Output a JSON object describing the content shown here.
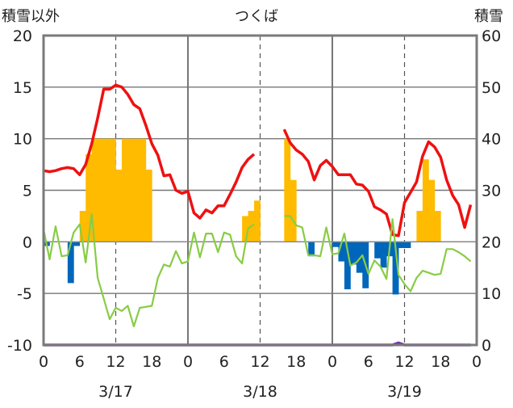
{
  "chart_data": {
    "type": "bar",
    "title": "つくば",
    "left_axis_label": "積雪以外",
    "right_axis_label": "積雪",
    "y_left": {
      "min": -10,
      "max": 20,
      "ticks": [
        "20",
        "15",
        "10",
        "5",
        "0",
        "-5",
        "-10"
      ]
    },
    "y_right": {
      "min": 0,
      "max": 60,
      "ticks": [
        "60",
        "50",
        "40",
        "30",
        "20",
        "10",
        "0"
      ]
    },
    "x_range": [
      0,
      72
    ],
    "x_ticks": [
      "0",
      "6",
      "12",
      "18",
      "0",
      "6",
      "12",
      "18",
      "0",
      "6",
      "12",
      "18",
      "0"
    ],
    "date_labels": [
      "3/17",
      "3/18",
      "3/19"
    ],
    "grid": {
      "major_hours": [
        24,
        48
      ],
      "minor_hours": [
        12,
        36,
        60
      ]
    },
    "colors": {
      "temperature": "#ee1111",
      "humidity_line": "#88cc44",
      "positive_bars": "#ffbb00",
      "negative_bars": "#0066bb",
      "snow_depth": "#7733aa"
    },
    "series": [
      {
        "kind": "line",
        "axis": "left",
        "color_key": "temperature",
        "points": [
          [
            0,
            6.9
          ],
          [
            1,
            6.8
          ],
          [
            2,
            6.9
          ],
          [
            3,
            7.1
          ],
          [
            4,
            7.2
          ],
          [
            5,
            7.1
          ],
          [
            6,
            6.5
          ],
          [
            7,
            7.5
          ],
          [
            8,
            9.5
          ],
          [
            9,
            12
          ],
          [
            10,
            14.8
          ],
          [
            11,
            14.8
          ],
          [
            12,
            15.2
          ],
          [
            13,
            15
          ],
          [
            14,
            14.3
          ],
          [
            15,
            13.3
          ],
          [
            16,
            12.9
          ],
          [
            17,
            11.3
          ],
          [
            18,
            9.5
          ],
          [
            19,
            8.4
          ],
          [
            20,
            6.4
          ],
          [
            21,
            6.5
          ],
          [
            22,
            5
          ],
          [
            23,
            4.7
          ],
          [
            24,
            4.9
          ],
          [
            25,
            2.8
          ],
          [
            26,
            2.3
          ],
          [
            27,
            3.1
          ],
          [
            28,
            2.8
          ],
          [
            29,
            3.5
          ],
          [
            30,
            3.5
          ],
          [
            31,
            4.6
          ],
          [
            32,
            5.8
          ],
          [
            33,
            7.2
          ],
          [
            34,
            8
          ],
          [
            35,
            8.5
          ],
          null,
          [
            40,
            10.9
          ],
          [
            41,
            9.6
          ],
          [
            42,
            8.9
          ],
          [
            43,
            8.5
          ],
          [
            44,
            7.8
          ],
          [
            45,
            6
          ],
          [
            46,
            7.4
          ],
          [
            47,
            7.9
          ],
          [
            48,
            7.3
          ],
          [
            49,
            6.5
          ],
          [
            50,
            6.5
          ],
          [
            51,
            6.5
          ],
          [
            52,
            5.6
          ],
          [
            53,
            5.5
          ],
          [
            54,
            4.9
          ],
          [
            55,
            3.4
          ],
          [
            56,
            3.1
          ],
          [
            57,
            2.7
          ],
          [
            58,
            0.7
          ],
          [
            59,
            0.6
          ],
          [
            60,
            3.8
          ],
          [
            61,
            4.8
          ],
          [
            62,
            5.8
          ],
          [
            63,
            8.3
          ],
          [
            64,
            9.7
          ],
          [
            65,
            9.2
          ],
          [
            66,
            8.2
          ],
          [
            67,
            6
          ],
          [
            68,
            4.5
          ],
          [
            69,
            3.6
          ],
          [
            70,
            1.4
          ],
          [
            71,
            3.6
          ]
        ]
      },
      {
        "kind": "line",
        "axis": "left",
        "color_key": "humidity_line",
        "points": [
          [
            0,
            1.2
          ],
          [
            1,
            -1.7
          ],
          [
            2,
            1.5
          ],
          [
            3,
            -1.4
          ],
          [
            4,
            -1.3
          ],
          [
            5,
            0.9
          ],
          [
            6,
            1.7
          ],
          [
            7,
            -2
          ],
          [
            8,
            2.7
          ],
          [
            9,
            -3.5
          ],
          [
            10,
            -5.5
          ],
          [
            11,
            -7.5
          ],
          [
            12,
            -6.4
          ],
          [
            13,
            -6.7
          ],
          [
            14,
            -6.2
          ],
          [
            15,
            -8.2
          ],
          [
            16,
            -6.4
          ],
          [
            17,
            -6.3
          ],
          [
            18,
            -6.2
          ],
          [
            19,
            -3.5
          ],
          [
            20,
            -2.2
          ],
          [
            21,
            -2.4
          ],
          [
            22,
            -0.9
          ],
          [
            23,
            -2.1
          ],
          [
            24,
            -1.9
          ],
          [
            25,
            0.9
          ],
          [
            26,
            -1.5
          ],
          [
            27,
            0.8
          ],
          [
            28,
            0.8
          ],
          [
            29,
            -1
          ],
          [
            30,
            0.9
          ],
          [
            31,
            0.7
          ],
          [
            32,
            -1.4
          ],
          [
            33,
            -2.1
          ],
          [
            34,
            1.3
          ],
          [
            35,
            1.7
          ],
          null,
          [
            40,
            2.5
          ],
          [
            41,
            2.5
          ],
          [
            42,
            1.6
          ],
          [
            43,
            1.4
          ],
          [
            44,
            -1.3
          ],
          [
            45,
            -1.3
          ],
          [
            46,
            -1.4
          ],
          [
            47,
            1.4
          ],
          [
            48,
            -1.2
          ],
          [
            49,
            -1.1
          ],
          [
            50,
            0.8
          ],
          [
            51,
            -2.3
          ],
          [
            52,
            -2
          ],
          [
            53,
            -1.3
          ],
          [
            54,
            -3.1
          ],
          [
            55,
            -1.8
          ],
          [
            56,
            -2.4
          ],
          [
            57,
            -3.6
          ],
          [
            58,
            2.2
          ],
          [
            59,
            -3.2
          ],
          [
            60,
            -4.1
          ],
          [
            61,
            -4.8
          ],
          [
            62,
            -3.5
          ],
          [
            63,
            -2.8
          ],
          [
            64,
            -3
          ],
          [
            65,
            -3.2
          ],
          [
            66,
            -3.1
          ],
          [
            67,
            -0.7
          ],
          [
            68,
            -0.7
          ],
          [
            69,
            -1
          ],
          [
            70,
            -1.4
          ],
          [
            71,
            -1.9
          ]
        ]
      },
      {
        "kind": "bars",
        "axis": "right",
        "color_key": "positive_bars",
        "data": [
          [
            6,
            26
          ],
          [
            7,
            37
          ],
          [
            8,
            40
          ],
          [
            9,
            40
          ],
          [
            10,
            40
          ],
          [
            11,
            40
          ],
          [
            12,
            34
          ],
          [
            13,
            40
          ],
          [
            14,
            40
          ],
          [
            15,
            40
          ],
          [
            16,
            40
          ],
          [
            17,
            34
          ],
          [
            33,
            25
          ],
          [
            34,
            26
          ],
          [
            35,
            28
          ],
          [
            40,
            40
          ],
          [
            41,
            32
          ],
          [
            62,
            26
          ],
          [
            63,
            36
          ],
          [
            64,
            32
          ],
          [
            65,
            26
          ]
        ]
      },
      {
        "kind": "bars",
        "axis": "left",
        "color_key": "negative_bars",
        "data": [
          [
            0,
            -0.4
          ],
          [
            4,
            -4
          ],
          [
            5,
            -0.4
          ],
          [
            44,
            -1.4
          ],
          [
            48,
            -0.5
          ],
          [
            49,
            -1.9
          ],
          [
            50,
            -4.6
          ],
          [
            51,
            -2.2
          ],
          [
            52,
            -3
          ],
          [
            53,
            -4.5
          ],
          [
            55,
            -1.6
          ],
          [
            56,
            -2.5
          ],
          [
            57,
            -1.4
          ],
          [
            58,
            -5.1
          ],
          [
            59,
            -0.6
          ],
          [
            60,
            -0.6
          ]
        ]
      },
      {
        "kind": "line",
        "axis": "right",
        "color_key": "snow_depth",
        "points": [
          [
            0,
            0
          ],
          [
            58,
            0
          ],
          [
            59,
            0.4
          ],
          [
            60,
            0
          ],
          [
            71,
            0
          ]
        ]
      }
    ]
  }
}
